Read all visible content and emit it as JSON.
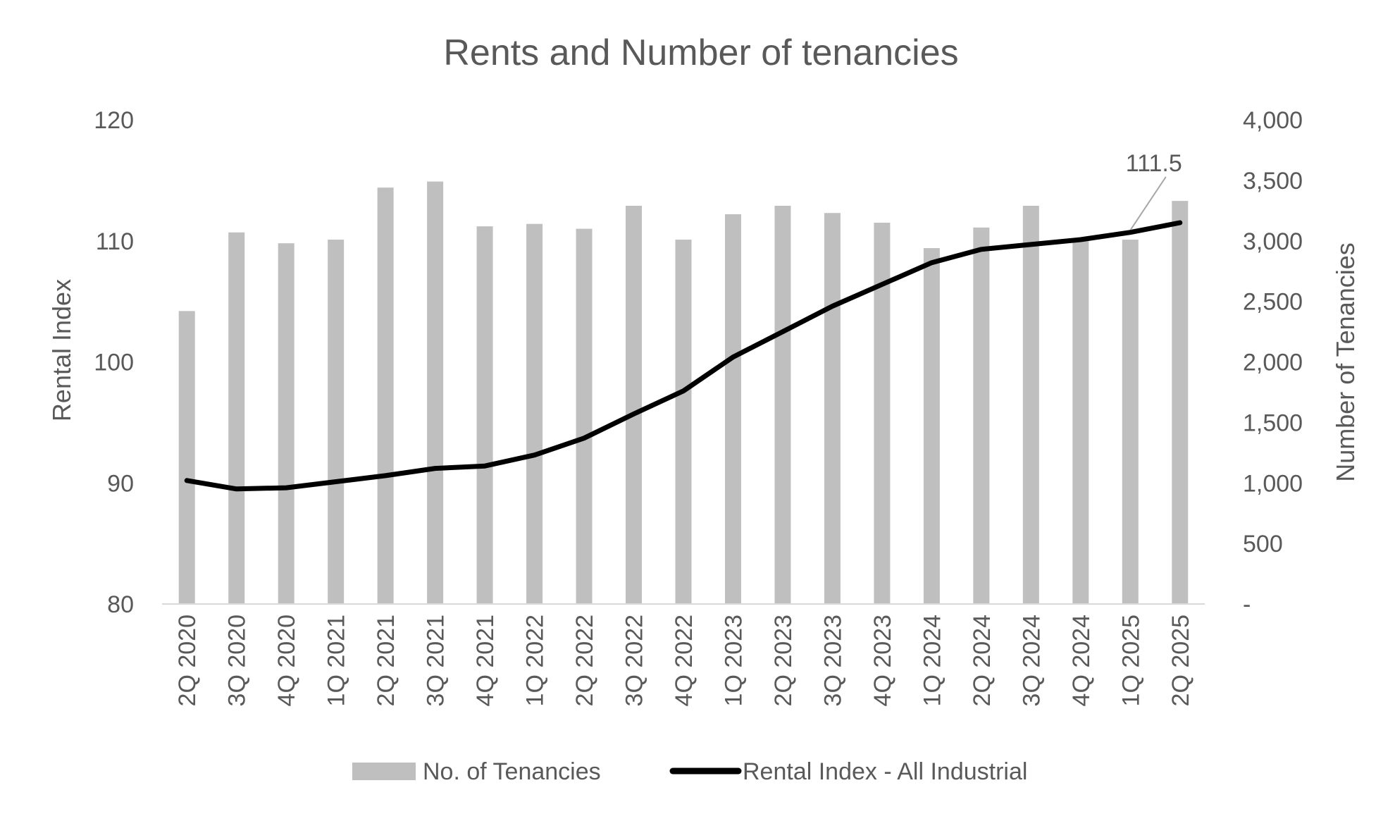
{
  "chart_data": {
    "type": "bar",
    "title": "Rents and Number of tenancies",
    "categories": [
      "2Q 2020",
      "3Q 2020",
      "4Q 2020",
      "1Q 2021",
      "2Q 2021",
      "3Q 2021",
      "4Q 2021",
      "1Q 2022",
      "2Q 2022",
      "3Q 2022",
      "4Q 2022",
      "1Q 2023",
      "2Q 2023",
      "3Q 2023",
      "4Q 2023",
      "1Q 2024",
      "2Q 2024",
      "3Q 2024",
      "4Q 2024",
      "1Q 2025",
      "2Q 2025"
    ],
    "series": [
      {
        "name": "No. of Tenancies",
        "type": "bar",
        "axis": "right",
        "color": "#bfbfbf",
        "values": [
          2420,
          3070,
          2980,
          3010,
          3440,
          3490,
          3120,
          3140,
          3100,
          3290,
          3010,
          3220,
          3290,
          3230,
          3150,
          2940,
          3110,
          3290,
          3010,
          3010,
          3330
        ]
      },
      {
        "name": "Rental Index - All Industrial",
        "type": "line",
        "axis": "left",
        "color": "#000000",
        "values": [
          90.2,
          89.5,
          89.6,
          90.1,
          90.6,
          91.2,
          91.4,
          92.3,
          93.7,
          95.7,
          97.6,
          100.4,
          102.5,
          104.6,
          106.4,
          108.2,
          109.3,
          109.7,
          110.1,
          110.7,
          111.5
        ]
      }
    ],
    "ylabel": "Rental Index",
    "ylim": [
      80,
      120
    ],
    "yticks": [
      "80",
      "90",
      "100",
      "110",
      "120"
    ],
    "y2label": "Number of Tenancies",
    "y2lim": [
      0,
      4000
    ],
    "y2ticks": [
      "-",
      "500",
      "1,000",
      "1,500",
      "2,000",
      "2,500",
      "3,000",
      "3,500",
      "4,000"
    ],
    "annotation": {
      "text": "111.5",
      "series": "Rental Index - All Industrial",
      "category": "2Q 2025"
    },
    "legend": "bottom",
    "grid": false
  }
}
